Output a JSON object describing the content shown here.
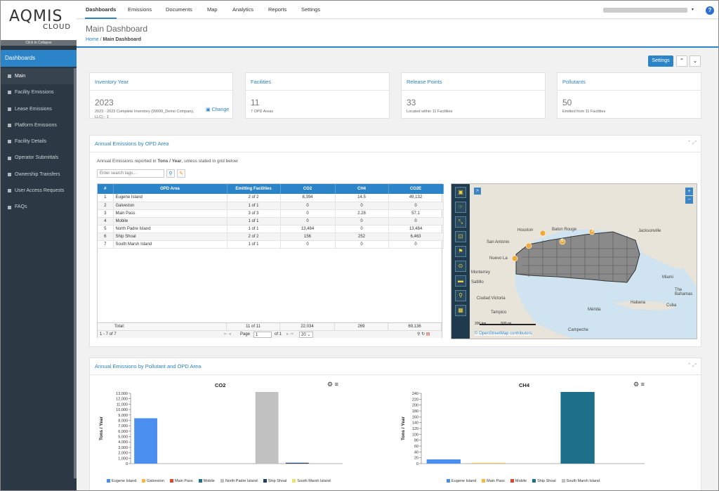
{
  "brand": {
    "logo_main": "AQMIS",
    "logo_sub": "CLOUD",
    "collapse": "Click to Collapse"
  },
  "sidebar": {
    "header": "Dashboards",
    "items": [
      {
        "label": "Main"
      },
      {
        "label": "Facility Emissions"
      },
      {
        "label": "Lease Emissions"
      },
      {
        "label": "Platform Emissions"
      },
      {
        "label": "Facility Details"
      },
      {
        "label": "Operator Submittals"
      },
      {
        "label": "Ownership Transfers"
      },
      {
        "label": "User Access Requests"
      },
      {
        "label": "FAQs"
      }
    ]
  },
  "topnav": {
    "tabs": [
      {
        "label": "Dashboards"
      },
      {
        "label": "Emissions"
      },
      {
        "label": "Documents"
      },
      {
        "label": "Map"
      },
      {
        "label": "Analytics"
      },
      {
        "label": "Reports"
      },
      {
        "label": "Settings"
      }
    ],
    "help": "?"
  },
  "page": {
    "title": "Main Dashboard",
    "breadcrumb": {
      "home": "Home",
      "sep": "/",
      "current": "Main Dashboard"
    }
  },
  "toolbar": {
    "settings": "Settings",
    "expand_up": "⌃",
    "expand_down": "⌄"
  },
  "cards": {
    "inventory": {
      "title": "Inventory Year",
      "value": "2023",
      "sub": "2023 - 2023 Complete Inventory (99999_Demo Company, LLC) - 1",
      "change": "Change"
    },
    "facilities": {
      "title": "Facilities",
      "value": "11",
      "sub": "7 OPD Areas"
    },
    "release": {
      "title": "Release Points",
      "value": "33",
      "sub": "Located within 11 Facilities"
    },
    "pollutants": {
      "title": "Pollutants",
      "value": "50",
      "sub": "Emitted from 11 Facilities"
    }
  },
  "opd_panel": {
    "title": "Annual Emissions by OPD Area",
    "note_pre": "Annual Emissions reported in ",
    "note_units": "Tons / Year",
    "note_post": ", unless stated in grid below",
    "search_placeholder": "Enter search tags...",
    "columns": [
      "#",
      "OPD Area",
      "Emitting Facilities",
      "CO2",
      "CH4",
      "CO2E"
    ],
    "rows": [
      [
        "1",
        "Eugene Island",
        "2 of 2",
        "8,394",
        "14.5",
        "49,132"
      ],
      [
        "2",
        "Galveston",
        "1 of 1",
        "0",
        "0",
        "0"
      ],
      [
        "3",
        "Main Pass",
        "3 of 3",
        "0",
        "2.28",
        "57.1"
      ],
      [
        "4",
        "Mobile",
        "1 of 1",
        "0",
        "0",
        "0"
      ],
      [
        "5",
        "North Padre Island",
        "1 of 1",
        "13,484",
        "0",
        "13,484"
      ],
      [
        "6",
        "Ship Shoal",
        "2 of 2",
        "156",
        "252",
        "6,463"
      ],
      [
        "7",
        "South Marsh Island",
        "1 of 1",
        "0",
        "0",
        "0"
      ]
    ],
    "total": {
      "label": "Total:",
      "facilities": "11 of 11",
      "co2": "22,034",
      "ch4": "269",
      "co2e": "69,136"
    },
    "pager": {
      "range": "1 - 7 of 7",
      "page_label": "Page",
      "page": "1",
      "of": "of 1",
      "per_page": "20 ⌄"
    }
  },
  "map": {
    "labels": [
      "San Antonio",
      "Houston",
      "Baton Rouge",
      "Jacksonville",
      "Monterrey",
      "Saltillo",
      "Ciudad Victoria",
      "Tampico",
      "Mérida",
      "Campeche",
      "Miami",
      "The Bahamas",
      "Nuevo La",
      "Cuba",
      "Habana"
    ],
    "scale_km": "200 km",
    "scale_mi": "500 mi",
    "attribution": "© OpenStreetMap contributors",
    "markers": [
      "3",
      "5"
    ]
  },
  "pollutant_panel": {
    "title": "Annual Emissions by Pollutant and OPD Area"
  },
  "chart_data": [
    {
      "type": "bar",
      "title": "CO2",
      "ylabel": "Tons / Year",
      "xlabel": "",
      "ylim": [
        0,
        13000
      ],
      "yticks": [
        "0",
        "1,000",
        "2,000",
        "3,000",
        "4,000",
        "5,000",
        "6,000",
        "7,000",
        "8,000",
        "9,000",
        "10,000",
        "11,000",
        "12,000",
        "13,000"
      ],
      "categories": [
        "Eugene Island",
        "Galveston",
        "Main Pass",
        "Mobile",
        "North Padre Island",
        "Ship Shoal",
        "South Marsh Island"
      ],
      "values": [
        8394,
        0,
        0,
        0,
        13484,
        156,
        0
      ],
      "colors": [
        "#4a8ff0",
        "#f5b840",
        "#e0462b",
        "#1d6f8a",
        "#c1c1c1",
        "#1f4066",
        "#f3df6b"
      ]
    },
    {
      "type": "bar",
      "title": "CH4",
      "ylabel": "Tons / Year",
      "xlabel": "",
      "ylim": [
        0,
        240
      ],
      "yticks": [
        "0",
        "20",
        "40",
        "60",
        "80",
        "100",
        "120",
        "140",
        "160",
        "180",
        "200",
        "220",
        "240"
      ],
      "categories": [
        "Eugene Island",
        "Main Pass",
        "Mobile",
        "Ship Shoal",
        "South Marsh Island"
      ],
      "values": [
        14.5,
        2.28,
        0,
        252,
        0
      ],
      "colors": [
        "#4a8ff0",
        "#f5b840",
        "#e0462b",
        "#1d6f8a",
        "#c1c1c1"
      ]
    }
  ]
}
